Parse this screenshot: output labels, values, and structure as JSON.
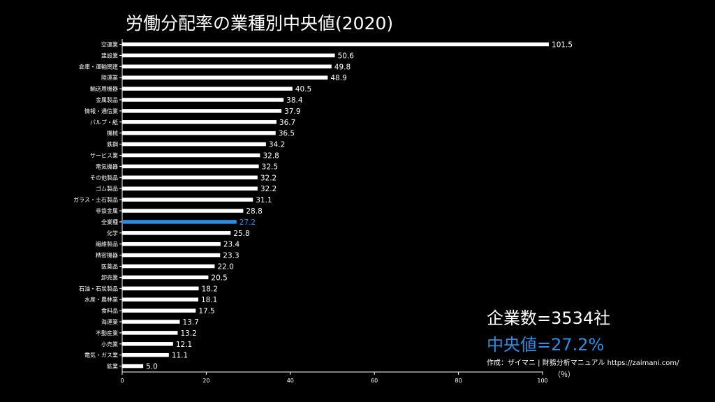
{
  "chart_data": {
    "type": "bar",
    "orientation": "horizontal",
    "title": "労働分配率の業種別中央値(2020)",
    "categories": [
      "空運業",
      "建設業",
      "倉庫・運輸関連",
      "陸運業",
      "輸送用機器",
      "金属製品",
      "情報・通信業",
      "パルプ・紙",
      "機械",
      "鉄鋼",
      "サービス業",
      "電気機器",
      "その他製品",
      "ゴム製品",
      "ガラス・土石製品",
      "非鉄金属",
      "全業種",
      "化学",
      "繊維製品",
      "精密機器",
      "医薬品",
      "卸売業",
      "石油・石炭製品",
      "水産・農林業",
      "食料品",
      "海運業",
      "不動産業",
      "小売業",
      "電気・ガス業",
      "鉱業"
    ],
    "values": [
      101.5,
      50.6,
      49.8,
      48.9,
      40.5,
      38.4,
      37.9,
      36.7,
      36.5,
      34.2,
      32.8,
      32.5,
      32.2,
      32.2,
      31.1,
      28.8,
      27.2,
      25.8,
      23.4,
      23.3,
      22.0,
      20.5,
      18.2,
      18.1,
      17.5,
      13.7,
      13.2,
      12.1,
      11.1,
      5.0
    ],
    "value_labels": [
      "101.5",
      "50.6",
      "49.8",
      "48.9",
      "40.5",
      "38.4",
      "37.9",
      "36.7",
      "36.5",
      "34.2",
      "32.8",
      "32.5",
      "32.2",
      "32.2",
      "31.1",
      "28.8",
      "27.2",
      "25.8",
      "23.4",
      "23.3",
      "22.0",
      "20.5",
      "18.2",
      "18.1",
      "17.5",
      "13.7",
      "13.2",
      "12.1",
      "11.1",
      "5.0"
    ],
    "highlight_category": "全業種",
    "xlim": [
      0,
      100
    ],
    "xticks": [
      0,
      20,
      40,
      60,
      80,
      100
    ],
    "xlabel": "（％）",
    "ylabel": "",
    "grid": false,
    "legend": "none",
    "colors": {
      "bar": "#ffffff",
      "highlight": "#2a8fe0",
      "background": "#000000",
      "text": "#ffffff"
    }
  },
  "annotations": {
    "company_count": "企業数=3534社",
    "median": "中央値=27.2%",
    "credit": "作成：ザイマニ | 財務分析マニュアル https://zaimani.com/"
  }
}
